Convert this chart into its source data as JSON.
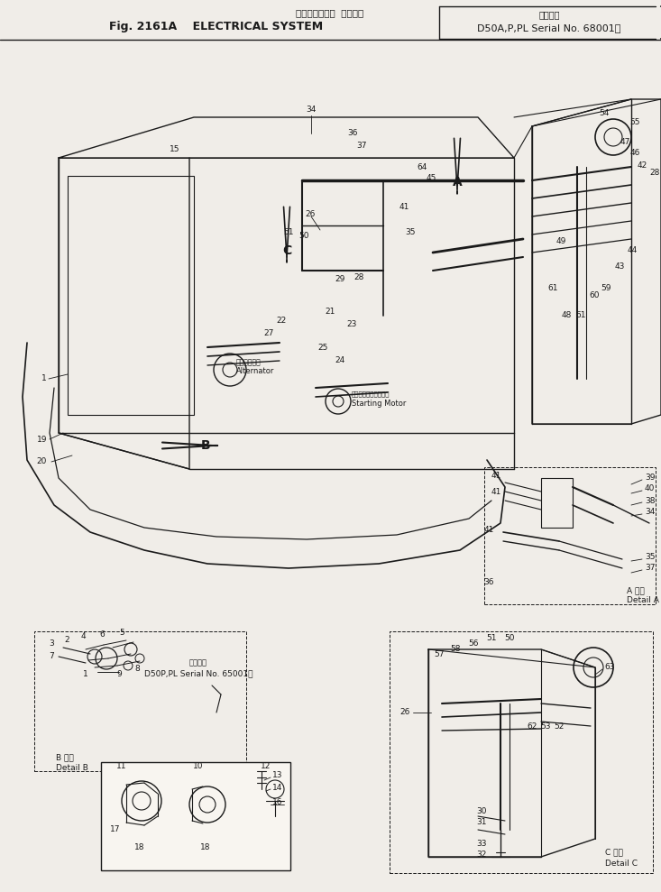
{
  "title_jp": "エレクトリカル  システム",
  "title_en": "Fig. 2161A    ELECTRICAL SYSTEM",
  "serial_jp": "適用号機",
  "serial_en": "D50A,P,PL Serial No. 68001～",
  "bg_color": "#f0ede8",
  "line_color": "#1a1a1a",
  "fig_width": 7.33,
  "fig_height": 9.89,
  "dpi": 100
}
